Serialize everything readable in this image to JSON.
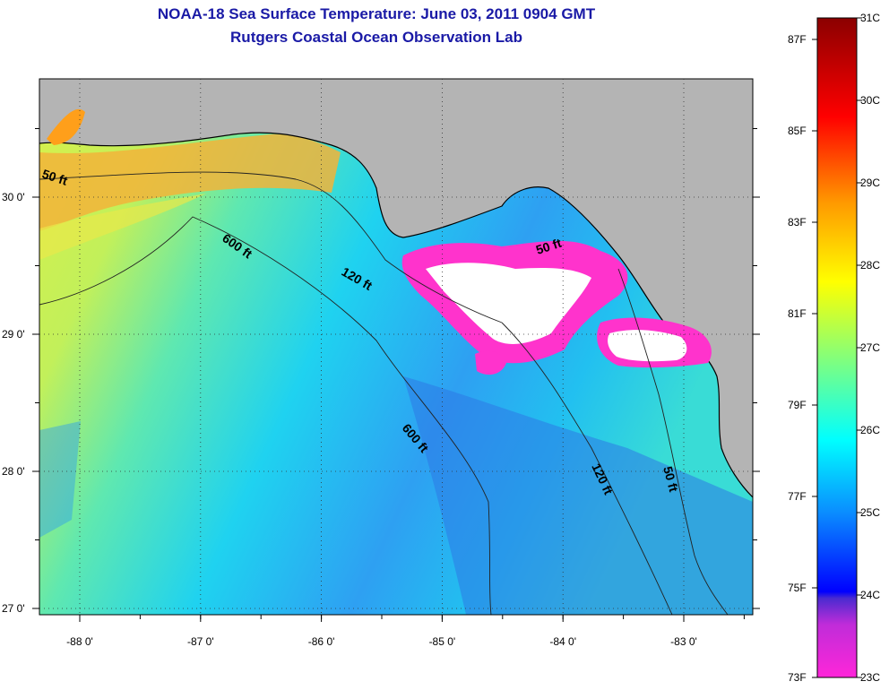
{
  "title": {
    "line1": "NOAA-18 Sea Surface Temperature:  June 03, 2011 0904 GMT",
    "line2": "Rutgers Coastal Ocean Observation Lab"
  },
  "map": {
    "lon_ticks": [
      {
        "value": -88,
        "label": "-88 0'"
      },
      {
        "value": -87,
        "label": "-87 0'"
      },
      {
        "value": -86,
        "label": "-86 0'"
      },
      {
        "value": -85,
        "label": "-85 0'"
      },
      {
        "value": -84,
        "label": "-84 0'"
      },
      {
        "value": -83,
        "label": "-83 0'"
      }
    ],
    "lat_ticks": [
      {
        "value": 30,
        "label": "30 0'"
      },
      {
        "value": 29,
        "label": "29 0'"
      },
      {
        "value": 28,
        "label": "28 0'"
      },
      {
        "value": 27,
        "label": "27 0'"
      }
    ],
    "contour_labels": [
      "50 ft",
      "600 ft",
      "120 ft",
      "50 ft",
      "600 ft",
      "120 ft",
      "50 ft"
    ],
    "colors": {
      "land": "#b4b4b4",
      "cloud": "#ffffff",
      "coastline": "#000000"
    }
  },
  "colorbar": {
    "celsius_labels": [
      "31C",
      "30C",
      "29C",
      "28C",
      "27C",
      "26C",
      "25C",
      "24C",
      "23C"
    ],
    "fahrenheit_labels": [
      "87F",
      "85F",
      "83F",
      "81F",
      "79F",
      "77F",
      "75F",
      "73F"
    ],
    "colors": [
      "#ff26d9",
      "#8c2bd9",
      "#0000ff",
      "#0a9dff",
      "#00ffff",
      "#7fff7f",
      "#ffff00",
      "#ff9900",
      "#ff0000",
      "#8b0000"
    ]
  }
}
